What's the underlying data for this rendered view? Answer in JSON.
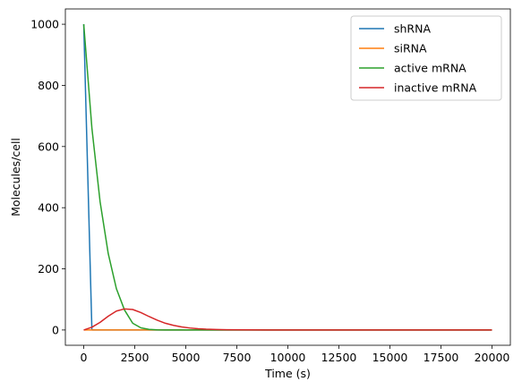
{
  "chart_data": {
    "type": "line",
    "title": "",
    "xlabel": "Time (s)",
    "ylabel": "Molecules/cell",
    "xlim": [
      -900,
      20900
    ],
    "ylim": [
      -50,
      1050
    ],
    "xticks": [
      0,
      2500,
      5000,
      7500,
      10000,
      12500,
      15000,
      17500,
      20000
    ],
    "yticks": [
      0,
      200,
      400,
      600,
      800,
      1000
    ],
    "grid": false,
    "legend_position": "top-right",
    "series": [
      {
        "name": "shRNA",
        "color": "#1f77b4",
        "x": [
          0,
          400,
          20000
        ],
        "y": [
          1000,
          0,
          0
        ]
      },
      {
        "name": "siRNA",
        "color": "#ff7f0e",
        "x": [
          0,
          20000
        ],
        "y": [
          0,
          0
        ]
      },
      {
        "name": "active mRNA",
        "color": "#2ca02c",
        "x": [
          0,
          400,
          800,
          1200,
          1600,
          2000,
          2400,
          2800,
          3200,
          3600,
          4000,
          5000,
          6000,
          8000,
          10000,
          12000,
          14000,
          16000,
          18000,
          20000
        ],
        "y": [
          1000,
          660,
          420,
          250,
          135,
          65,
          22,
          7,
          2,
          0.5,
          0.2,
          0,
          0,
          0,
          0,
          0,
          0,
          0,
          0,
          0
        ]
      },
      {
        "name": "inactive mRNA",
        "color": "#d62728",
        "x": [
          0,
          400,
          800,
          1200,
          1600,
          2000,
          2400,
          2800,
          3200,
          3600,
          4000,
          4400,
          4800,
          5200,
          5600,
          6000,
          6500,
          7000,
          8000,
          9000,
          10000,
          12000,
          14000,
          16000,
          18000,
          20000
        ],
        "y": [
          0,
          9,
          25,
          45,
          62,
          69,
          67,
          57,
          44,
          32,
          22,
          15,
          10,
          6.5,
          4,
          2.5,
          1.5,
          1,
          0.4,
          0.2,
          0.1,
          0,
          0,
          0,
          0,
          0
        ]
      }
    ]
  }
}
